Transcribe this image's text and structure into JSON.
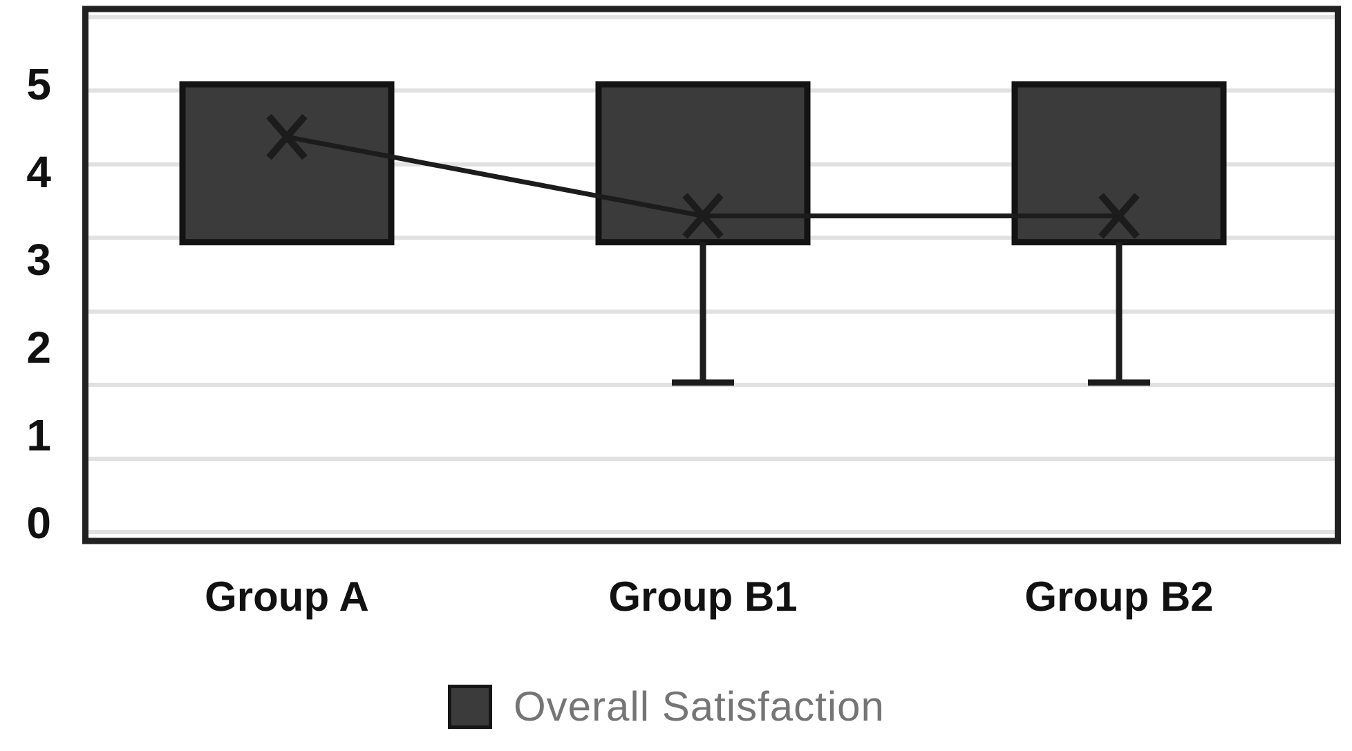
{
  "legend": {
    "label": "Overall Satisfaction",
    "swatch_color": "#3b3b3b"
  },
  "colors": {
    "background": "#ffffff",
    "plot_border": "#212121",
    "gridline": "#e1e1e1",
    "bar_fill": "#3b3b3b",
    "bar_border": "#131313",
    "whisker": "#1c1c1c",
    "mean_marker": "#1c1c1c",
    "connector_line": "#1c1c1c",
    "axis_text": "#111111",
    "legend_text": "#757575"
  },
  "chart_data": {
    "type": "box",
    "title": "",
    "categories": [
      "Group A",
      "Group B1",
      "Group B2"
    ],
    "ylim": [
      0,
      5.6
    ],
    "yticks": [
      0,
      1,
      2,
      3,
      4,
      5
    ],
    "grid": "horizontal",
    "legend_position": "bottom",
    "legend_entries": [
      "Overall Satisfaction"
    ],
    "series": [
      {
        "name": "Overall Satisfaction",
        "boxes": [
          {
            "category": "Group A",
            "box_top": 5.0,
            "box_bottom": 3.2,
            "mean": 4.4,
            "whisker_low": null
          },
          {
            "category": "Group B1",
            "box_top": 5.0,
            "box_bottom": 3.2,
            "mean": 3.5,
            "whisker_low": 1.6
          },
          {
            "category": "Group B2",
            "box_top": 5.0,
            "box_bottom": 3.2,
            "mean": 3.5,
            "whisker_low": 1.6
          }
        ],
        "mean_connector_line": true
      }
    ]
  }
}
